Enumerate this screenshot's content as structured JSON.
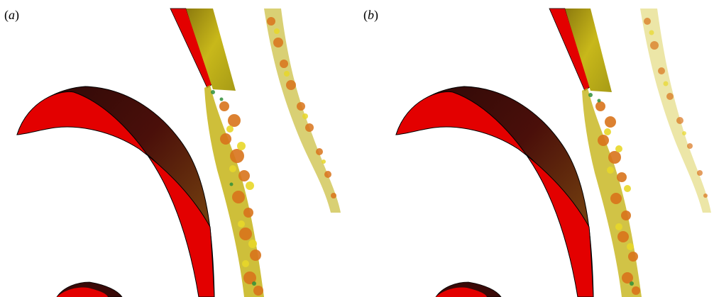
{
  "panels": [
    {
      "id": "a",
      "label_open": "(",
      "label_letter": "a",
      "label_close": ")"
    },
    {
      "id": "b",
      "label_open": "(",
      "label_letter": "b",
      "label_close": ")"
    }
  ],
  "colors": {
    "blade_pressure": "#e30000",
    "blade_suction_dark": "#3a0a08",
    "blade_suction_mid": "#7a3a14",
    "blade_edge": "#000000",
    "wake_yellow": "#d8c81c",
    "wake_orange": "#d9741b",
    "wake_green": "#2f8f3a",
    "wake_olive": "#9a9a1a"
  },
  "icons": [
    "turbine-blade-icon",
    "vortex-wake-icon"
  ]
}
